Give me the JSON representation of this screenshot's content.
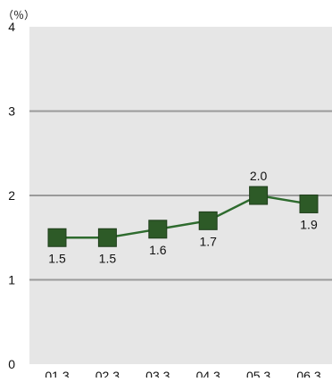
{
  "chart_data": {
    "type": "line",
    "unit_label": "（％）",
    "categories": [
      "01.3",
      "02.3",
      "03.3",
      "04.3",
      "05.3",
      "06.3"
    ],
    "series": [
      {
        "values": [
          1.5,
          1.5,
          1.6,
          1.7,
          2.0,
          1.9
        ]
      }
    ],
    "data_labels": [
      "1.5",
      "1.5",
      "1.6",
      "1.7",
      "2.0",
      "1.9"
    ],
    "data_label_positions": [
      "below",
      "below",
      "below",
      "below",
      "above",
      "below"
    ],
    "y_ticks": [
      "0",
      "1",
      "2",
      "3",
      "4"
    ],
    "ylim": [
      0,
      4
    ],
    "grid": true,
    "colors": {
      "plot_background": "#e6e6e6",
      "gridline": "#9a9a9a",
      "line": "#2e6b2e",
      "marker": "#2d5a27",
      "marker_stroke": "#1f3d1b"
    }
  }
}
